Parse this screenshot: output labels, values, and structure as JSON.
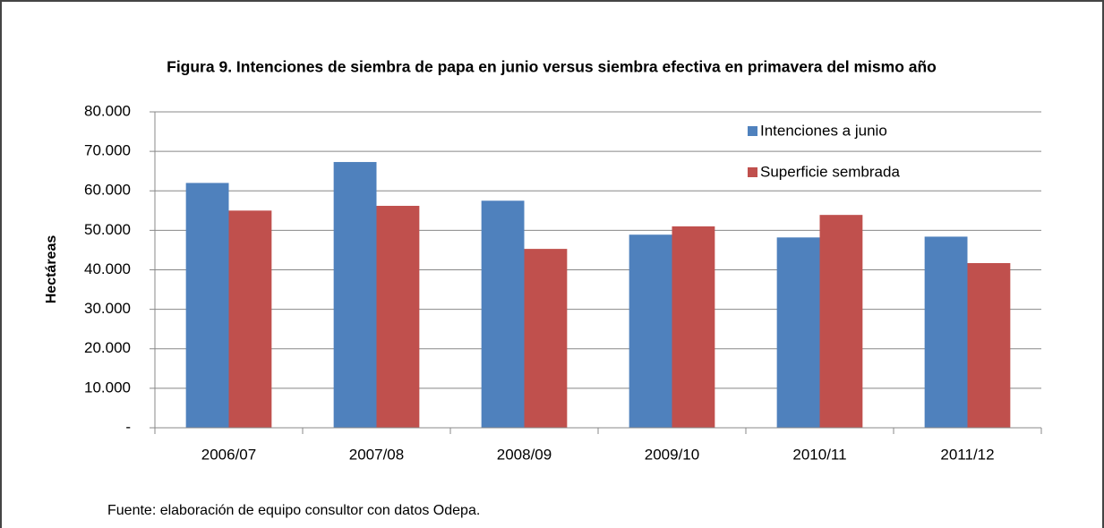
{
  "chart_data": {
    "type": "bar",
    "title": "Figura 9. Intenciones de siembra de papa en junio versus siembra efectiva en primavera del mismo año",
    "y_label": "Hectáreas",
    "note": "Fuente: elaboración de equipo consultor con datos Odepa.",
    "categories": [
      "2006/07",
      "2007/08",
      "2008/09",
      "2009/10",
      "2010/11",
      "2011/12"
    ],
    "series": [
      {
        "name": "Intenciones a junio",
        "color": "#4f81bd",
        "values": [
          62000,
          67300,
          57500,
          48900,
          48200,
          48400
        ]
      },
      {
        "name": "Superficie sembrada",
        "color": "#c0504d",
        "values": [
          55000,
          56200,
          45300,
          51000,
          53900,
          41700
        ]
      }
    ],
    "ylim": [
      0,
      80000
    ],
    "yticks": [
      {
        "value": 0,
        "label": "-"
      },
      {
        "value": 10000,
        "label": "10.000"
      },
      {
        "value": 20000,
        "label": "20.000"
      },
      {
        "value": 30000,
        "label": "30.000"
      },
      {
        "value": 40000,
        "label": "40.000"
      },
      {
        "value": 50000,
        "label": "50.000"
      },
      {
        "value": 60000,
        "label": "60.000"
      },
      {
        "value": 70000,
        "label": "70.000"
      },
      {
        "value": 80000,
        "label": "80.000"
      }
    ],
    "grid": true,
    "legend": "upper right"
  }
}
